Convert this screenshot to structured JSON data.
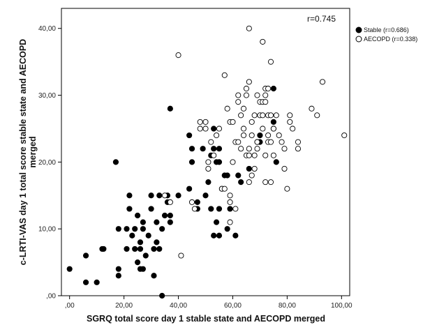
{
  "chart_data": {
    "type": "scatter",
    "xlabel": "SGRQ total score day 1 stable state and AECOPD merged",
    "ylabel_line1": "c-LRTI-VAS day 1 total score stable state and AECOPD",
    "ylabel_line2": "merged",
    "xlim": [
      -3,
      103
    ],
    "ylim": [
      0,
      43
    ],
    "xticks": [
      0,
      20,
      40,
      60,
      80,
      100
    ],
    "xtick_labels": [
      ",00",
      "20,00",
      "40,00",
      "60,00",
      "80,00",
      "100,00"
    ],
    "yticks": [
      0,
      10,
      20,
      30,
      40
    ],
    "ytick_labels": [
      ",00",
      "10,00",
      "20,00",
      "30,00",
      "40,00"
    ],
    "annotation": "r=0.745",
    "legend_position": "top-right, outside plot",
    "colors": {
      "stable": "#000000",
      "aecopd_fill": "#ffffff",
      "aecopd_stroke": "#000000"
    },
    "series": [
      {
        "name": "Stable (r=0.686)",
        "marker": "filled-circle",
        "points": [
          [
            0,
            4
          ],
          [
            6,
            2
          ],
          [
            6,
            6
          ],
          [
            10,
            2
          ],
          [
            12,
            7
          ],
          [
            12.5,
            7
          ],
          [
            17,
            20
          ],
          [
            18,
            4
          ],
          [
            18,
            3
          ],
          [
            18,
            10
          ],
          [
            21,
            7
          ],
          [
            21,
            10
          ],
          [
            22,
            13
          ],
          [
            22,
            15
          ],
          [
            23,
            9
          ],
          [
            24,
            7
          ],
          [
            24,
            10
          ],
          [
            25,
            12
          ],
          [
            25,
            5
          ],
          [
            26,
            4
          ],
          [
            26,
            7
          ],
          [
            26,
            8
          ],
          [
            27,
            4
          ],
          [
            27,
            10
          ],
          [
            27,
            11
          ],
          [
            28,
            6
          ],
          [
            29,
            9
          ],
          [
            30,
            13
          ],
          [
            30,
            15
          ],
          [
            31,
            3
          ],
          [
            31,
            7
          ],
          [
            32,
            8
          ],
          [
            32,
            11
          ],
          [
            33,
            7
          ],
          [
            33,
            15
          ],
          [
            34,
            0
          ],
          [
            34,
            10
          ],
          [
            35,
            12
          ],
          [
            36,
            14
          ],
          [
            36,
            15
          ],
          [
            37,
            11
          ],
          [
            37,
            12
          ],
          [
            37,
            28
          ],
          [
            40,
            15
          ],
          [
            44,
            16
          ],
          [
            44,
            24
          ],
          [
            45,
            20
          ],
          [
            45,
            22
          ],
          [
            47,
            13
          ],
          [
            47,
            14
          ],
          [
            49,
            22
          ],
          [
            50,
            15
          ],
          [
            51,
            17
          ],
          [
            52,
            13
          ],
          [
            52,
            21
          ],
          [
            53,
            9
          ],
          [
            53,
            22
          ],
          [
            53,
            25
          ],
          [
            54,
            11
          ],
          [
            54,
            20
          ],
          [
            55,
            9
          ],
          [
            55,
            13
          ],
          [
            55,
            20
          ],
          [
            55,
            22
          ],
          [
            56,
            16
          ],
          [
            57,
            18
          ],
          [
            58,
            10
          ],
          [
            58,
            18
          ],
          [
            59,
            13
          ],
          [
            61,
            9
          ],
          [
            62,
            18
          ],
          [
            63,
            17
          ],
          [
            66,
            19
          ],
          [
            69,
            23
          ],
          [
            70,
            23
          ],
          [
            70,
            24
          ],
          [
            75,
            31
          ],
          [
            75,
            26
          ],
          [
            75,
            25
          ],
          [
            76,
            20
          ]
        ]
      },
      {
        "name": "AECOPD (r=0.338)",
        "marker": "open-circle",
        "points": [
          [
            35,
            15
          ],
          [
            37,
            14
          ],
          [
            40,
            36
          ],
          [
            41,
            6
          ],
          [
            45,
            14
          ],
          [
            46,
            13
          ],
          [
            48,
            25
          ],
          [
            48,
            26
          ],
          [
            50,
            25
          ],
          [
            50,
            26
          ],
          [
            51,
            19
          ],
          [
            51,
            20
          ],
          [
            52,
            23
          ],
          [
            53,
            21
          ],
          [
            54,
            24
          ],
          [
            55,
            25
          ],
          [
            56,
            16
          ],
          [
            57,
            33
          ],
          [
            57,
            16
          ],
          [
            58,
            28
          ],
          [
            59,
            11
          ],
          [
            59,
            14
          ],
          [
            59,
            15
          ],
          [
            59,
            26
          ],
          [
            60,
            26
          ],
          [
            60,
            20
          ],
          [
            61,
            13
          ],
          [
            61,
            23
          ],
          [
            62,
            23
          ],
          [
            62,
            29
          ],
          [
            62,
            30
          ],
          [
            63,
            27
          ],
          [
            63,
            22
          ],
          [
            64,
            24
          ],
          [
            64,
            25
          ],
          [
            64,
            28
          ],
          [
            65,
            21
          ],
          [
            65,
            30
          ],
          [
            65,
            31
          ],
          [
            66,
            21
          ],
          [
            66,
            40
          ],
          [
            66,
            32
          ],
          [
            66,
            22
          ],
          [
            66,
            17
          ],
          [
            67,
            26
          ],
          [
            67,
            24
          ],
          [
            67,
            18
          ],
          [
            68,
            19
          ],
          [
            68,
            27
          ],
          [
            68,
            21
          ],
          [
            69,
            30
          ],
          [
            69,
            23
          ],
          [
            69,
            22
          ],
          [
            70,
            27
          ],
          [
            70,
            29
          ],
          [
            71,
            27
          ],
          [
            71,
            38
          ],
          [
            71,
            25
          ],
          [
            71,
            29
          ],
          [
            72,
            29
          ],
          [
            72,
            21
          ],
          [
            72,
            17
          ],
          [
            72,
            30
          ],
          [
            72,
            31
          ],
          [
            73,
            23
          ],
          [
            73,
            31
          ],
          [
            73,
            27
          ],
          [
            73,
            24
          ],
          [
            74,
            35
          ],
          [
            74,
            27
          ],
          [
            74,
            23
          ],
          [
            74,
            17
          ],
          [
            75,
            25
          ],
          [
            75,
            21
          ],
          [
            76,
            27
          ],
          [
            77,
            24
          ],
          [
            78,
            23
          ],
          [
            79,
            19
          ],
          [
            79,
            22
          ],
          [
            80,
            16
          ],
          [
            81,
            27
          ],
          [
            81,
            26
          ],
          [
            82,
            25
          ],
          [
            84,
            22
          ],
          [
            84,
            23
          ],
          [
            89,
            28
          ],
          [
            91,
            27
          ],
          [
            93,
            32
          ],
          [
            101,
            24
          ]
        ]
      }
    ]
  }
}
